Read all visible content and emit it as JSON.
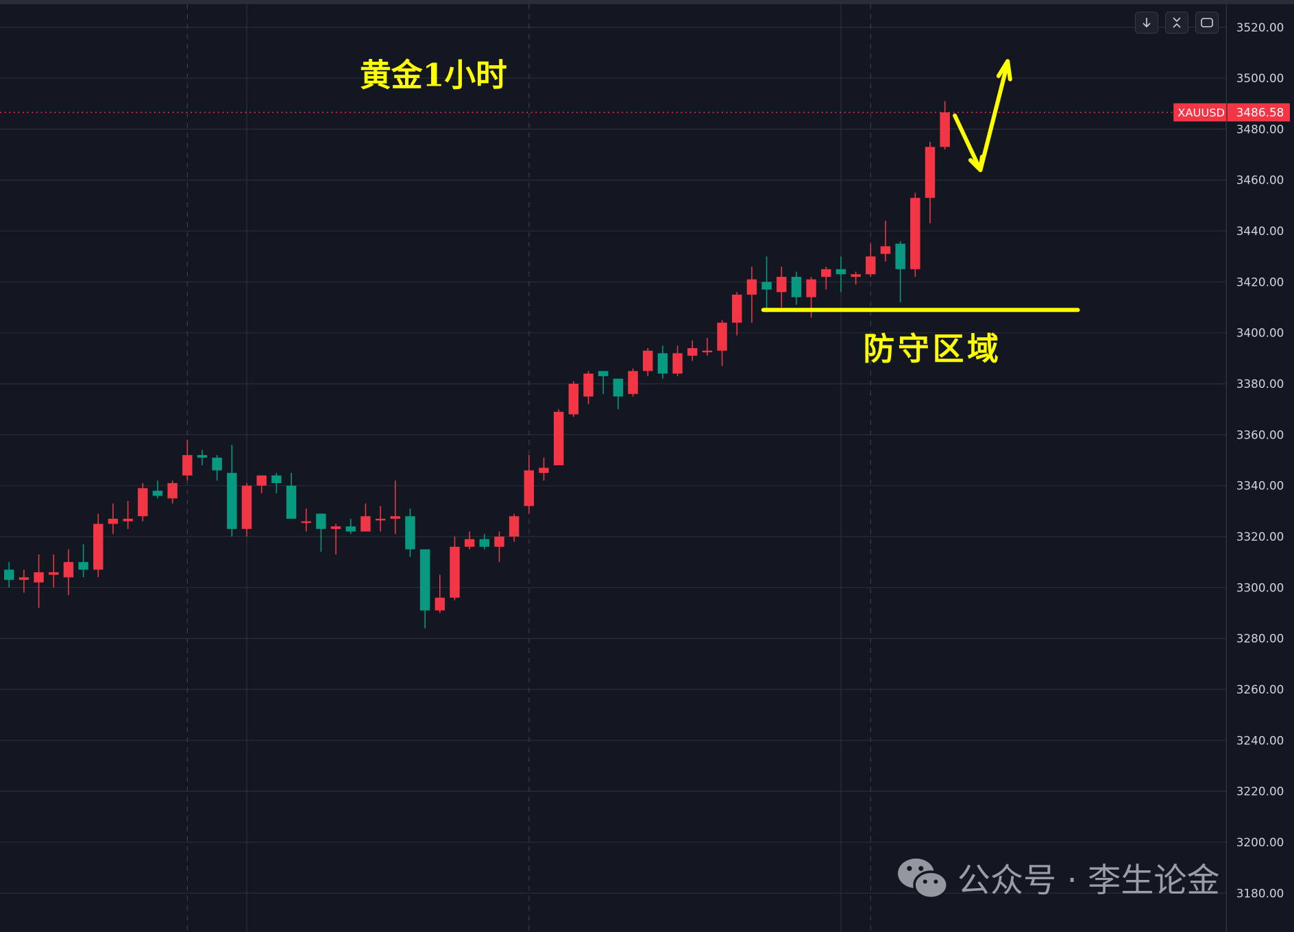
{
  "chart_data": {
    "type": "candlestick",
    "symbol": "XAUUSD",
    "last_price": 3486.58,
    "last_price_label": "3486.58",
    "up_color": "#f23645",
    "down_color": "#089981",
    "ylim": [
      3173,
      3530
    ],
    "y_ticks": [
      "3520.00",
      "3500.00",
      "3480.00",
      "3460.00",
      "3440.00",
      "3420.00",
      "3400.00",
      "3380.00",
      "3360.00",
      "3340.00",
      "3320.00",
      "3300.00",
      "3280.00",
      "3260.00",
      "3240.00",
      "3220.00",
      "3200.00",
      "3180.00"
    ],
    "grid": true,
    "candles": [
      [
        3307,
        3310,
        3300,
        3303
      ],
      [
        3303,
        3307,
        3298,
        3304
      ],
      [
        3302,
        3313,
        3292,
        3306
      ],
      [
        3305,
        3313,
        3300,
        3306
      ],
      [
        3304,
        3315,
        3297,
        3310
      ],
      [
        3310,
        3317,
        3304,
        3307
      ],
      [
        3307,
        3329,
        3304,
        3325
      ],
      [
        3325,
        3333,
        3321,
        3327
      ],
      [
        3326,
        3334,
        3323,
        3327
      ],
      [
        3328,
        3341,
        3326,
        3339
      ],
      [
        3338,
        3342,
        3335,
        3336
      ],
      [
        3335,
        3342,
        3333,
        3341
      ],
      [
        3344,
        3358,
        3342,
        3352
      ],
      [
        3352,
        3354,
        3348,
        3351
      ],
      [
        3351,
        3352,
        3342,
        3346
      ],
      [
        3345,
        3356,
        3320,
        3323
      ],
      [
        3323,
        3341,
        3320,
        3340
      ],
      [
        3340,
        3344,
        3337,
        3344
      ],
      [
        3344,
        3345,
        3337,
        3341
      ],
      [
        3340,
        3345,
        3327,
        3327
      ],
      [
        3326,
        3331,
        3322,
        3326
      ],
      [
        3329,
        3329,
        3314,
        3323
      ],
      [
        3323,
        3325,
        3313,
        3324
      ],
      [
        3324,
        3327,
        3321,
        3322
      ],
      [
        3322,
        3333,
        3322,
        3328
      ],
      [
        3327,
        3332,
        3322,
        3327
      ],
      [
        3327,
        3342,
        3321,
        3328
      ],
      [
        3328,
        3331,
        3312,
        3315
      ],
      [
        3315,
        3315,
        3284,
        3291
      ],
      [
        3291,
        3305,
        3290,
        3296
      ],
      [
        3296,
        3320,
        3295,
        3316
      ],
      [
        3316,
        3322,
        3315,
        3319
      ],
      [
        3319,
        3321,
        3315,
        3316
      ],
      [
        3316,
        3322,
        3310,
        3320
      ],
      [
        3320,
        3329,
        3318,
        3328
      ],
      [
        3332,
        3352,
        3329,
        3346
      ],
      [
        3345,
        3351,
        3342,
        3347
      ],
      [
        3348,
        3370,
        3348,
        3369
      ],
      [
        3368,
        3381,
        3367,
        3380
      ],
      [
        3375,
        3385,
        3372,
        3384
      ],
      [
        3385,
        3385,
        3376,
        3383
      ],
      [
        3382,
        3382,
        3370,
        3375
      ],
      [
        3376,
        3386,
        3375,
        3385
      ],
      [
        3385,
        3394,
        3383,
        3393
      ],
      [
        3392,
        3395,
        3382,
        3384
      ],
      [
        3384,
        3395,
        3383,
        3392
      ],
      [
        3391,
        3397,
        3389,
        3394
      ],
      [
        3393,
        3398,
        3391,
        3393
      ],
      [
        3393,
        3405,
        3387,
        3404
      ],
      [
        3404,
        3416,
        3399,
        3415
      ],
      [
        3415,
        3426,
        3404,
        3421
      ],
      [
        3420,
        3430,
        3408,
        3417
      ],
      [
        3416,
        3426,
        3410,
        3422
      ],
      [
        3422,
        3424,
        3411,
        3414
      ],
      [
        3414,
        3422,
        3406,
        3421
      ],
      [
        3422,
        3426,
        3417,
        3425
      ],
      [
        3425,
        3430,
        3416,
        3423
      ],
      [
        3422,
        3424,
        3419,
        3423
      ],
      [
        3423,
        3435,
        3422,
        3430
      ],
      [
        3431,
        3444,
        3428,
        3434
      ],
      [
        3435,
        3436,
        3412,
        3425
      ],
      [
        3425,
        3455,
        3422,
        3453
      ],
      [
        3453,
        3475,
        3443,
        3473
      ],
      [
        3473,
        3491,
        3472,
        3486.58
      ]
    ],
    "candle_format": [
      "open",
      "high",
      "low",
      "close"
    ],
    "annotations": {
      "title": "黄金1小时",
      "zone_label": "防守区域",
      "zone_price": 3409,
      "color": "#ffff00"
    }
  },
  "toolbar": {
    "buttons": [
      {
        "name": "scroll-to-latest",
        "icon": "arrow-down-icon"
      },
      {
        "name": "auto-fit",
        "icon": "collapse-icon"
      },
      {
        "name": "fullscreen",
        "icon": "fullscreen-icon"
      }
    ]
  },
  "watermark": {
    "text": "公众号 · 李生论金",
    "icon": "wechat-icon"
  }
}
